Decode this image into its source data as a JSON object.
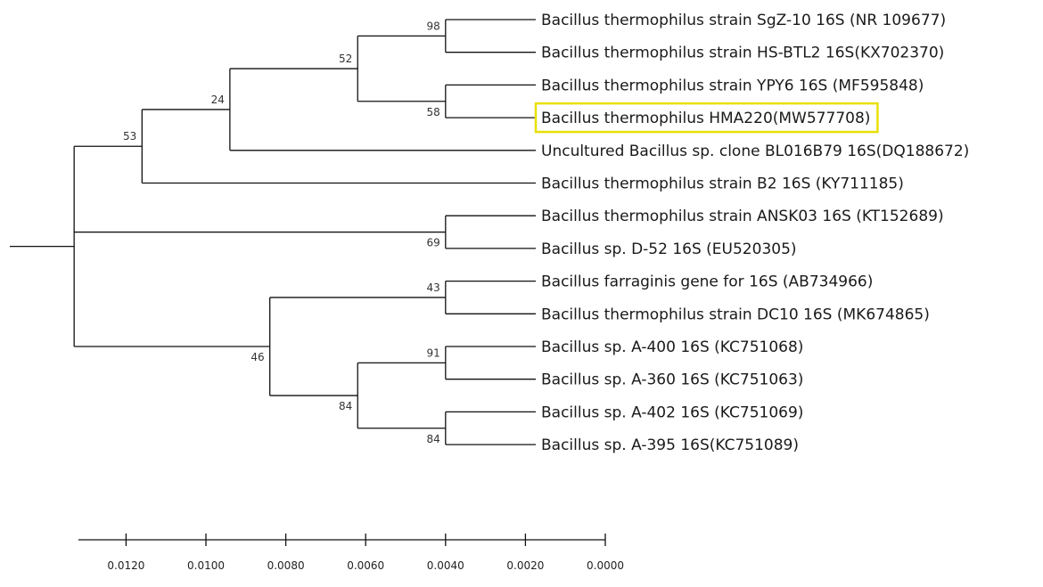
{
  "colors": {
    "branch": "#111111",
    "highlight": "#e8e000",
    "text": "#1a1a1a"
  },
  "taxa": [
    {
      "id": "sgz10",
      "label": "Bacillus thermophilus strain SgZ-10 16S (NR 109677)"
    },
    {
      "id": "hsbtl2",
      "label": "Bacillus thermophilus strain HS-BTL2 16S(KX702370)"
    },
    {
      "id": "ypy6",
      "label": "Bacillus thermophilus strain YPY6 16S (MF595848)"
    },
    {
      "id": "hma220",
      "label": "Bacillus thermophilus HMA220(MW577708)",
      "highlighted": true
    },
    {
      "id": "bl016b79",
      "label": "Uncultured Bacillus sp. clone BL016B79 16S(DQ188672)"
    },
    {
      "id": "b2",
      "label": "Bacillus thermophilus strain B2 16S (KY711185)"
    },
    {
      "id": "ansk03",
      "label": "Bacillus thermophilus strain ANSK03 16S (KT152689)"
    },
    {
      "id": "d52",
      "label": "Bacillus sp. D-52 16S (EU520305)"
    },
    {
      "id": "farraginis",
      "label": "Bacillus farraginis gene for 16S (AB734966)"
    },
    {
      "id": "dc10",
      "label": "Bacillus thermophilus strain DC10 16S (MK674865)"
    },
    {
      "id": "a400",
      "label": "Bacillus sp. A-400 16S (KC751068)"
    },
    {
      "id": "a360",
      "label": "Bacillus sp. A-360 16S (KC751063)"
    },
    {
      "id": "a402",
      "label": "Bacillus sp. A-402 16S (KC751069)"
    },
    {
      "id": "a395",
      "label": "Bacillus sp. A-395 16S(KC751089)"
    }
  ],
  "tree": {
    "id": "root",
    "height": 0.0133,
    "children": [
      {
        "id": "n53",
        "height": 0.0116,
        "bootstrap": "53",
        "boot_side": "above",
        "children": [
          {
            "id": "n24",
            "height": 0.0094,
            "bootstrap": "24",
            "boot_side": "above",
            "children": [
              {
                "id": "n52",
                "height": 0.0062,
                "bootstrap": "52",
                "boot_side": "above",
                "children": [
                  {
                    "id": "n98",
                    "height": 0.004,
                    "bootstrap": "98",
                    "boot_side": "above",
                    "children": [
                      {
                        "taxon": "sgz10"
                      },
                      {
                        "taxon": "hsbtl2"
                      }
                    ]
                  },
                  {
                    "id": "n58",
                    "height": 0.004,
                    "bootstrap": "58",
                    "boot_side": "below",
                    "children": [
                      {
                        "taxon": "ypy6"
                      },
                      {
                        "taxon": "hma220"
                      }
                    ]
                  }
                ]
              },
              {
                "taxon": "bl016b79"
              }
            ]
          },
          {
            "taxon": "b2"
          }
        ]
      },
      {
        "id": "n46",
        "height": 0.0084,
        "bootstrap": "46",
        "boot_side": "below",
        "children": [
          {
            "id": "n43",
            "height": 0.004,
            "bootstrap": "43",
            "boot_side": "above",
            "children": [
              {
                "taxon": "farraginis"
              },
              {
                "taxon": "dc10"
              }
            ]
          },
          {
            "id": "n84a",
            "height": 0.0062,
            "bootstrap": "84",
            "boot_side": "below",
            "children": [
              {
                "id": "n91",
                "height": 0.004,
                "bootstrap": "91",
                "boot_side": "above",
                "children": [
                  {
                    "taxon": "a400"
                  },
                  {
                    "taxon": "a360"
                  }
                ]
              },
              {
                "id": "n84b",
                "height": 0.004,
                "bootstrap": "84",
                "boot_side": "below",
                "children": [
                  {
                    "taxon": "a402"
                  },
                  {
                    "taxon": "a395"
                  }
                ]
              }
            ]
          }
        ]
      },
      {
        "id": "n69",
        "height": 0.004,
        "bootstrap": "69",
        "boot_side": "below",
        "children": [
          {
            "taxon": "ansk03"
          },
          {
            "taxon": "d52"
          }
        ]
      }
    ]
  },
  "scale_axis": {
    "min": 0.0,
    "max": 0.0133,
    "reversed": true,
    "ticks": [
      0.012,
      0.01,
      0.008,
      0.006,
      0.004,
      0.002,
      0.0
    ],
    "tick_labels": [
      "0.0120",
      "0.0100",
      "0.0080",
      "0.0060",
      "0.0040",
      "0.0020",
      "0.0000"
    ]
  }
}
